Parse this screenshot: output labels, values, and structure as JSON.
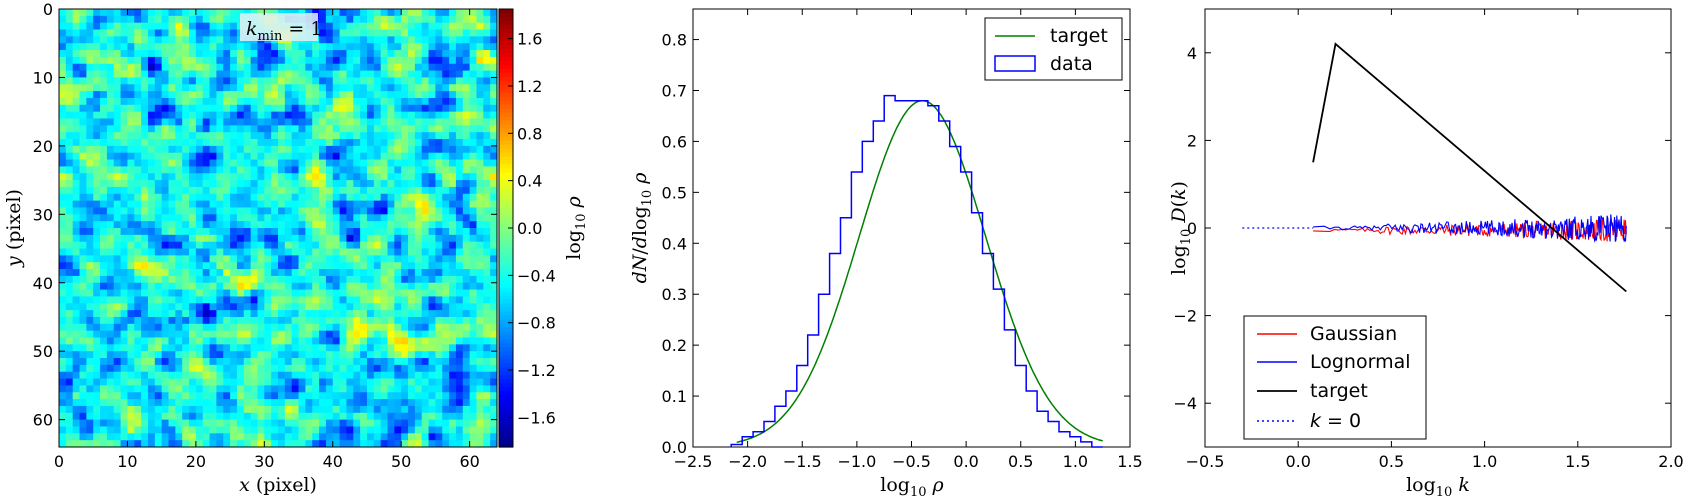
{
  "chart_data": [
    {
      "type": "heatmap",
      "annotation": "k_min = 1",
      "annotation_base": "k",
      "annotation_sub": "min",
      "annotation_rest": " = 1",
      "xlabel": "x (pixel)",
      "ylabel": "y (pixel)",
      "xlim": [
        0,
        64
      ],
      "ylim": [
        64,
        0
      ],
      "grid_size": 64,
      "xticks": [
        "0",
        "10",
        "20",
        "30",
        "40",
        "50",
        "60"
      ],
      "yticks": [
        "0",
        "10",
        "20",
        "30",
        "40",
        "50",
        "60"
      ],
      "colorbar": {
        "label": "log10 ρ",
        "range": [
          -1.85,
          1.85
        ],
        "ticks": [
          "1.6",
          "1.2",
          "0.8",
          "0.4",
          "0.0",
          "−0.4",
          "−0.8",
          "−1.2",
          "−1.6"
        ]
      },
      "colormap": "jet",
      "grid": false
    },
    {
      "type": "line",
      "xlabel": "log10 ρ",
      "ylabel": "dN/dlog10 ρ",
      "xlim": [
        -2.5,
        1.5
      ],
      "ylim": [
        0.0,
        0.86
      ],
      "xticks": [
        "−2.5",
        "−2.0",
        "−1.5",
        "−1.0",
        "−0.5",
        "0.0",
        "0.5",
        "1.0",
        "1.5"
      ],
      "yticks": [
        "0.0",
        "0.1",
        "0.2",
        "0.3",
        "0.4",
        "0.5",
        "0.6",
        "0.7",
        "0.8"
      ],
      "legend_position": "top-right",
      "series": [
        {
          "name": "target",
          "color": "#008000",
          "gaussian_mean": -0.4,
          "gaussian_sigma": 0.58,
          "x_range": [
            -2.1,
            1.25
          ]
        },
        {
          "name": "data",
          "color": "#0000ff",
          "step_width": 0.1,
          "bin_starts": [
            -2.15,
            -2.05,
            -1.95,
            -1.85,
            -1.75,
            -1.65,
            -1.55,
            -1.45,
            -1.35,
            -1.25,
            -1.15,
            -1.05,
            -0.95,
            -0.85,
            -0.75,
            -0.65,
            -0.55,
            -0.45,
            -0.35,
            -0.25,
            -0.15,
            -0.05,
            0.05,
            0.15,
            0.25,
            0.35,
            0.45,
            0.55,
            0.65,
            0.75,
            0.85,
            0.95,
            1.05,
            1.15
          ],
          "values": [
            0.005,
            0.02,
            0.03,
            0.05,
            0.08,
            0.11,
            0.16,
            0.22,
            0.3,
            0.38,
            0.45,
            0.54,
            0.6,
            0.64,
            0.69,
            0.68,
            0.68,
            0.68,
            0.67,
            0.64,
            0.59,
            0.54,
            0.46,
            0.38,
            0.31,
            0.23,
            0.16,
            0.11,
            0.07,
            0.05,
            0.03,
            0.02,
            0.01,
            0.0
          ]
        }
      ],
      "grid": false
    },
    {
      "type": "line",
      "xlabel": "log10 k",
      "ylabel": "log10 D(k)",
      "xlim": [
        -0.5,
        2.0
      ],
      "ylim": [
        -5,
        5
      ],
      "xticks": [
        "−0.5",
        "0.0",
        "0.5",
        "1.0",
        "1.5",
        "2.0"
      ],
      "yticks": [
        "4",
        "2",
        "0",
        "−2",
        "−4"
      ],
      "legend_position": "lower-left",
      "series": [
        {
          "name": "Gaussian",
          "color": "#ff0000",
          "x_range": [
            0.08,
            1.76
          ],
          "center": -0.05,
          "noise_amplitude": 0.25
        },
        {
          "name": "Lognormal",
          "color": "#0000ff",
          "x_range": [
            0.08,
            1.76
          ],
          "center": 0.0,
          "noise_amplitude": 0.28
        },
        {
          "name": "target",
          "color": "#000000",
          "x": [
            0.08,
            0.2,
            1.76
          ],
          "y": [
            1.5,
            4.2,
            -1.45
          ]
        },
        {
          "name": "k = 0",
          "name_base": "k",
          "name_rest": " = 0",
          "color": "#0000ff",
          "dotted": true,
          "x": [
            -0.3,
            0.08
          ],
          "y": [
            0,
            0
          ]
        }
      ],
      "grid": false
    }
  ]
}
